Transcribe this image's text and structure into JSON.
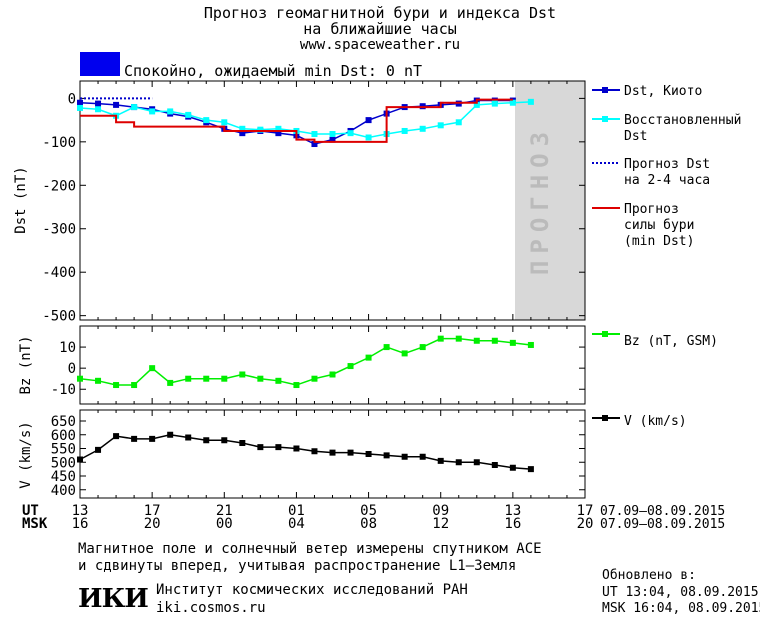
{
  "header": {
    "title_line1": "Прогноз геомагнитной бури и индекса Dst",
    "title_line2": "на ближайшие часы",
    "url": "www.spaceweather.ru"
  },
  "status": {
    "text": "Спокойно, ожидаемый min Dst: 0 nT",
    "color": "#0000ee"
  },
  "colors": {
    "dst_kyoto": "#0000cc",
    "dst_restored": "#00ffff",
    "dst_forecast": "#0000cc",
    "storm_forecast": "#dd0000",
    "bz": "#00ee00",
    "v": "#000000",
    "forecast_band": "#d8d8d8",
    "forecast_text": "#bbbbbb"
  },
  "chart_data": [
    {
      "type": "line",
      "ylabel": "Dst (nT)",
      "ylim": [
        -510,
        40
      ],
      "yticks": [
        0,
        -100,
        -200,
        -300,
        -400,
        -500
      ],
      "forecast_label": "ПРОГНОЗ",
      "forecast_from_hour": 13,
      "series": [
        {
          "name": "Dst, Киото",
          "marker": "square",
          "x": [
            13,
            14,
            15,
            16,
            17,
            18,
            19,
            20,
            21,
            22,
            23,
            0,
            1,
            2,
            3,
            4,
            5,
            6,
            7,
            8,
            9,
            10,
            11,
            12,
            13
          ],
          "y": [
            -10,
            -12,
            -15,
            -20,
            -25,
            -35,
            -42,
            -55,
            -70,
            -80,
            -75,
            -80,
            -85,
            -105,
            -95,
            -75,
            -50,
            -35,
            -20,
            -18,
            -15,
            -12,
            -5,
            -5,
            -5
          ]
        },
        {
          "name": "Восстановленный Dst",
          "marker": "square",
          "x": [
            13,
            14,
            15,
            16,
            17,
            18,
            19,
            20,
            21,
            22,
            23,
            0,
            1,
            2,
            3,
            4,
            5,
            6,
            7,
            8,
            9,
            10,
            11,
            12,
            13,
            14
          ],
          "y": [
            -22,
            -25,
            -40,
            -20,
            -30,
            -30,
            -38,
            -50,
            -55,
            -70,
            -72,
            -70,
            -75,
            -82,
            -82,
            -80,
            -90,
            -82,
            -75,
            -70,
            -62,
            -55,
            -15,
            -12,
            -10,
            -8
          ]
        },
        {
          "name": "Прогноз Dst\nна 2-4 часа",
          "style": "dotted",
          "x": [
            13,
            17
          ],
          "y": [
            0,
            0
          ]
        },
        {
          "name": "Прогноз\nсилы бури\n(min Dst)",
          "style": "step",
          "x": [
            13,
            14,
            15,
            16,
            17,
            18,
            19,
            20,
            21,
            22,
            23,
            0,
            1,
            2,
            3,
            4,
            5,
            6,
            7,
            8,
            9,
            10,
            11,
            12,
            13
          ],
          "y": [
            -40,
            -40,
            -55,
            -65,
            -65,
            -65,
            -65,
            -65,
            -75,
            -75,
            -75,
            -75,
            -95,
            -100,
            -100,
            -100,
            -100,
            -20,
            -20,
            -20,
            -10,
            -10,
            -3,
            -3,
            -3
          ]
        }
      ]
    },
    {
      "type": "line",
      "ylabel": "Bz (nT)",
      "ylim": [
        -17,
        20
      ],
      "yticks": [
        10,
        0,
        -10
      ],
      "series": [
        {
          "name": "Bz (nT, GSM)",
          "marker": "square",
          "x": [
            13,
            14,
            15,
            16,
            17,
            18,
            19,
            20,
            21,
            22,
            23,
            0,
            1,
            2,
            3,
            4,
            5,
            6,
            7,
            8,
            9,
            10,
            11,
            12,
            13,
            14
          ],
          "y": [
            -5,
            -6,
            -8,
            -8,
            0,
            -7,
            -5,
            -5,
            -5,
            -3,
            -5,
            -6,
            -8,
            -5,
            -3,
            1,
            5,
            10,
            7,
            10,
            14,
            14,
            13,
            13,
            12,
            11
          ]
        }
      ]
    },
    {
      "type": "line",
      "ylabel": "V (km/s)",
      "ylim": [
        370,
        690
      ],
      "yticks": [
        650,
        600,
        550,
        500,
        450,
        400
      ],
      "series": [
        {
          "name": "V (km/s)",
          "marker": "square",
          "x": [
            13,
            14,
            15,
            16,
            17,
            18,
            19,
            20,
            21,
            22,
            23,
            0,
            1,
            2,
            3,
            4,
            5,
            6,
            7,
            8,
            9,
            10,
            11,
            12,
            13,
            14
          ],
          "y": [
            510,
            545,
            595,
            585,
            585,
            600,
            590,
            580,
            580,
            570,
            555,
            555,
            550,
            540,
            535,
            535,
            530,
            525,
            520,
            520,
            505,
            500,
            500,
            490,
            480,
            475
          ]
        }
      ]
    }
  ],
  "x_axis": {
    "ut_label": "UT",
    "msk_label": "MSK",
    "ut_ticks": [
      "13",
      "17",
      "21",
      "01",
      "05",
      "09",
      "13",
      "17"
    ],
    "msk_ticks": [
      "16",
      "20",
      "00",
      "04",
      "08",
      "12",
      "16",
      "20"
    ],
    "date_range_ut": "07.09–08.09.2015",
    "date_range_msk": "07.09–08.09.2015"
  },
  "footer": {
    "note_line1": "Магнитное поле и солнечный ветер измерены спутником ACE",
    "note_line2": "и сдвинуты вперед, учитывая распространение L1–Земля",
    "institute_logo": "ИКИ",
    "institute_name": "Институт космических исследований РАН",
    "institute_url": "iki.cosmos.ru",
    "updated_label": "Обновлено в:",
    "updated_ut": "UT  13:04, 08.09.2015",
    "updated_msk": "MSK 16:04, 08.09.2015"
  }
}
